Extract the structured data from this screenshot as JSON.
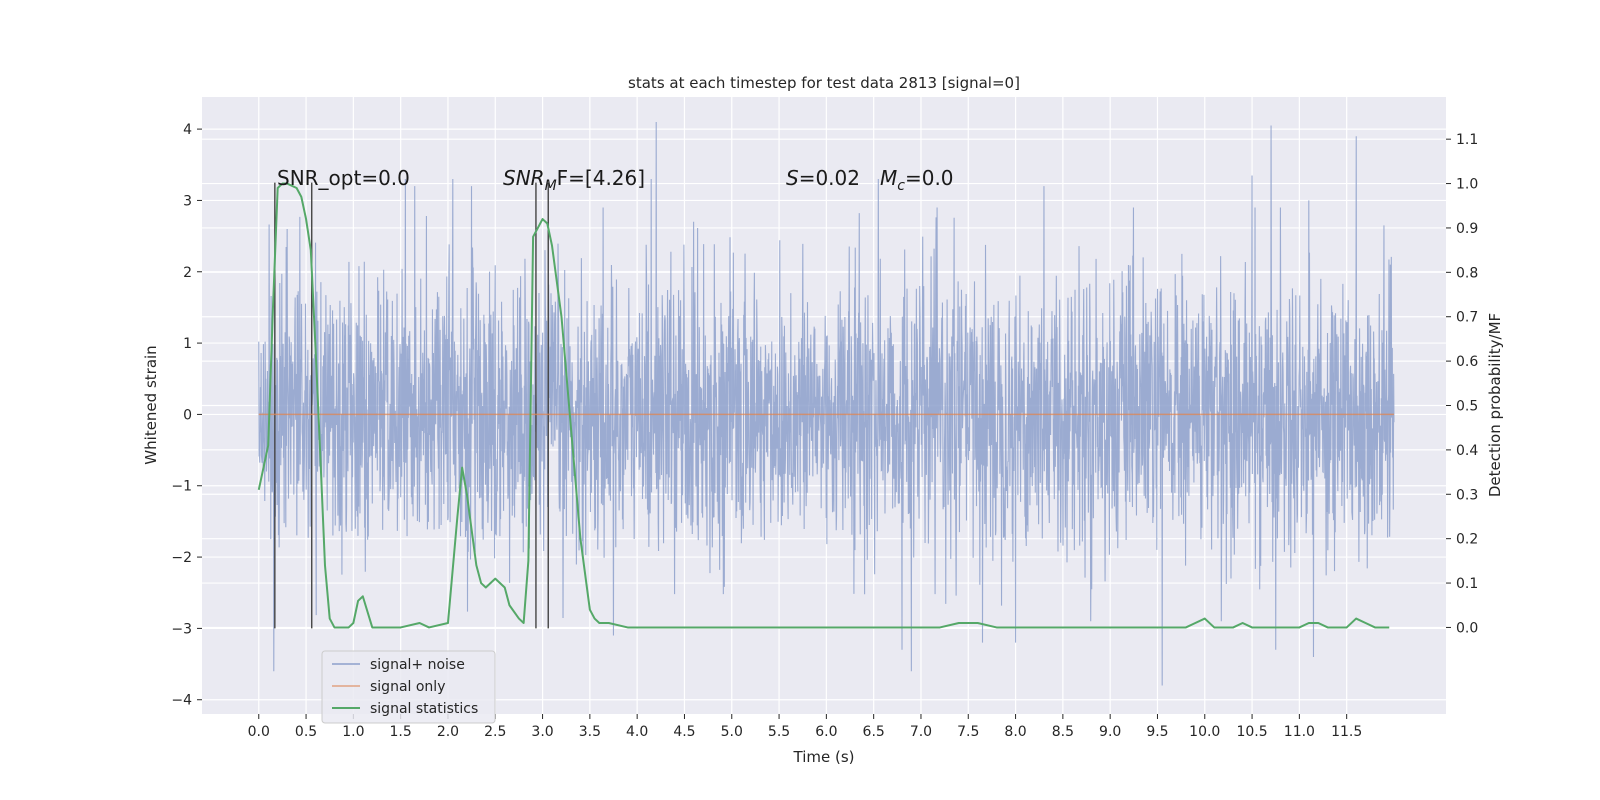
{
  "chart_data": {
    "type": "line",
    "title": "stats at each timestep for test data 2813 [signal=0]",
    "xlabel": "Time (s)",
    "ylabel": "Whitened strain",
    "y2label": "Detection probability/MF",
    "xlim": [
      -0.6,
      12.55
    ],
    "ylim": [
      -4.2,
      4.45
    ],
    "y2lim": [
      -0.195,
      1.195
    ],
    "xticks": [
      0.0,
      0.5,
      1.0,
      1.5,
      2.0,
      2.5,
      3.0,
      3.5,
      4.0,
      4.5,
      5.0,
      5.5,
      6.0,
      6.5,
      7.0,
      7.5,
      8.0,
      8.5,
      9.0,
      9.5,
      10.0,
      10.5,
      11.0,
      11.5
    ],
    "xtick_labels": [
      "0.0",
      "0.5",
      "1.0",
      "1.5",
      "2.0",
      "2.5",
      "3.0",
      "3.5",
      "4.0",
      "4.5",
      "5.0",
      "5.5",
      "6.0",
      "6.5",
      "7.0",
      "7.5",
      "8.0",
      "8.5",
      "9.0",
      "9.5",
      "10.0",
      "10.5",
      "11.0",
      "11.5"
    ],
    "yticks": [
      -4,
      -3,
      -2,
      -1,
      0,
      1,
      2,
      3,
      4
    ],
    "ytick_labels": [
      "−4",
      "−3",
      "−2",
      "−1",
      "0",
      "1",
      "2",
      "3",
      "4"
    ],
    "y2ticks": [
      0.0,
      0.1,
      0.2,
      0.3,
      0.4,
      0.5,
      0.6,
      0.7,
      0.8,
      0.9,
      1.0,
      1.1
    ],
    "y2tick_labels": [
      "0.0",
      "0.1",
      "0.2",
      "0.3",
      "0.4",
      "0.5",
      "0.6",
      "0.7",
      "0.8",
      "0.9",
      "1.0",
      "1.1"
    ],
    "grid": true,
    "legend": {
      "placement": "lower-left",
      "entries": [
        {
          "label": "signal+ noise",
          "color": "#8da0cb"
        },
        {
          "label": "signal only",
          "color": "#dd8452"
        },
        {
          "label": "signal statistics",
          "color": "#55a868"
        }
      ]
    },
    "annotations": {
      "snr_opt": "SNR_opt=0.0",
      "snr_mf_main": "SNR",
      "snr_mf_sub": "M",
      "snr_mf_rest": "F=[4.26]",
      "s_main": "S",
      "s_rest": "=0.02",
      "mc_main": "M",
      "mc_sub": "c",
      "mc_rest": "=0.0"
    },
    "series": [
      {
        "name": "signal+ noise",
        "axis": "left",
        "color": "#8da0cb",
        "x_range": [
          0.0,
          12.0
        ],
        "noise_std": 0.95,
        "spikes": [
          {
            "x": 0.16,
            "y": -3.6
          },
          {
            "x": 0.3,
            "y": 2.6
          },
          {
            "x": 1.55,
            "y": 3.3
          },
          {
            "x": 1.65,
            "y": 3.2
          },
          {
            "x": 2.05,
            "y": 3.3
          },
          {
            "x": 2.25,
            "y": 3.2
          },
          {
            "x": 4.2,
            "y": 4.1
          },
          {
            "x": 4.15,
            "y": 3.3
          },
          {
            "x": 6.55,
            "y": 3.3
          },
          {
            "x": 6.9,
            "y": -3.6
          },
          {
            "x": 6.8,
            "y": -3.3
          },
          {
            "x": 8.3,
            "y": 3.2
          },
          {
            "x": 9.55,
            "y": -3.8
          },
          {
            "x": 10.5,
            "y": 3.35
          },
          {
            "x": 10.7,
            "y": 4.05
          },
          {
            "x": 10.75,
            "y": -3.3
          },
          {
            "x": 11.15,
            "y": -3.4
          },
          {
            "x": 11.6,
            "y": 3.9
          },
          {
            "x": 3.75,
            "y": -3.1
          },
          {
            "x": 7.65,
            "y": -3.2
          },
          {
            "x": 8.0,
            "y": -3.2
          },
          {
            "x": 11.1,
            "y": 3.0
          }
        ]
      },
      {
        "name": "signal only",
        "axis": "left",
        "color": "#dd8452",
        "x": [
          0.0,
          12.0
        ],
        "y": [
          0.0,
          0.0
        ]
      },
      {
        "name": "signal statistics",
        "axis": "right",
        "color": "#55a868",
        "x": [
          0.0,
          0.1,
          0.15,
          0.2,
          0.25,
          0.3,
          0.4,
          0.45,
          0.5,
          0.55,
          0.6,
          0.65,
          0.7,
          0.75,
          0.8,
          0.85,
          0.9,
          0.95,
          1.0,
          1.05,
          1.1,
          1.2,
          1.5,
          1.7,
          1.8,
          2.0,
          2.1,
          2.15,
          2.2,
          2.3,
          2.35,
          2.4,
          2.5,
          2.6,
          2.65,
          2.75,
          2.8,
          2.85,
          2.9,
          2.95,
          3.0,
          3.05,
          3.1,
          3.2,
          3.3,
          3.4,
          3.5,
          3.55,
          3.6,
          3.7,
          3.9,
          4.0,
          4.1,
          4.2,
          4.3,
          4.5,
          5.0,
          6.0,
          7.0,
          7.2,
          7.4,
          7.6,
          7.8,
          8.0,
          8.5,
          9.0,
          9.5,
          9.8,
          9.9,
          10.0,
          10.1,
          10.3,
          10.4,
          10.5,
          10.8,
          11.0,
          11.1,
          11.2,
          11.3,
          11.4,
          11.5,
          11.6,
          11.7,
          11.8,
          11.95
        ],
        "y": [
          0.31,
          0.41,
          0.72,
          0.99,
          1.0,
          1.0,
          0.99,
          0.97,
          0.92,
          0.85,
          0.63,
          0.39,
          0.14,
          0.02,
          0.0,
          0.0,
          0.0,
          0.0,
          0.01,
          0.06,
          0.07,
          0.0,
          0.0,
          0.01,
          0.0,
          0.01,
          0.25,
          0.36,
          0.3,
          0.14,
          0.1,
          0.09,
          0.11,
          0.09,
          0.05,
          0.02,
          0.01,
          0.15,
          0.88,
          0.9,
          0.92,
          0.91,
          0.86,
          0.7,
          0.45,
          0.2,
          0.04,
          0.02,
          0.01,
          0.01,
          0.0,
          0.0,
          0.0,
          0.0,
          0.0,
          0.0,
          0.0,
          0.0,
          0.0,
          0.0,
          0.01,
          0.01,
          0.0,
          0.0,
          0.0,
          0.0,
          0.0,
          0.0,
          0.01,
          0.02,
          0.0,
          0.0,
          0.01,
          0.0,
          0.0,
          0.0,
          0.01,
          0.01,
          0.0,
          0.0,
          0.0,
          0.02,
          0.01,
          0.0,
          0.0
        ]
      }
    ],
    "vertical_markers": [
      {
        "x": 0.17,
        "y_top": 3.25,
        "y_bottom": -3.0
      },
      {
        "x": 0.56,
        "y_top": 3.25,
        "y_bottom": -3.0
      },
      {
        "x": 2.93,
        "y_top": 3.25,
        "y_bottom": -3.0
      },
      {
        "x": 3.06,
        "y_top": 3.25,
        "y_bottom": -3.0
      }
    ]
  }
}
